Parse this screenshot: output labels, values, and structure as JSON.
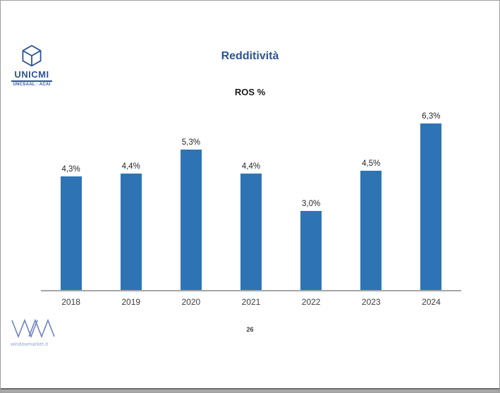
{
  "slide": {
    "title": "Redditività",
    "subtitle": "ROS %",
    "page_number": "26"
  },
  "logos": {
    "unicmi": {
      "name": "UNICMI",
      "sub": "UNCSAAL · ACAI"
    },
    "windowmarket": {
      "label": "windowmarket.it"
    }
  },
  "chart_data": {
    "type": "bar",
    "title": "Redditività",
    "subtitle": "ROS %",
    "categories": [
      "2018",
      "2019",
      "2020",
      "2021",
      "2022",
      "2023",
      "2024"
    ],
    "values": [
      4.3,
      4.4,
      5.3,
      4.4,
      3.0,
      4.5,
      6.3
    ],
    "labels": [
      "4,3%",
      "4,4%",
      "5,3%",
      "4,4%",
      "3,0%",
      "4,5%",
      "6,3%"
    ],
    "xlabel": "",
    "ylabel": "",
    "ylim": [
      0,
      7
    ],
    "grid": false,
    "legend": "none",
    "bar_color": "#2e74b5",
    "axis_color": "#a6a6a6"
  },
  "colors": {
    "accent_blue": "#2d5496",
    "bar_blue": "#2e74b5",
    "axis_gray": "#a6a6a6",
    "wm_blue": "#7282c1"
  }
}
